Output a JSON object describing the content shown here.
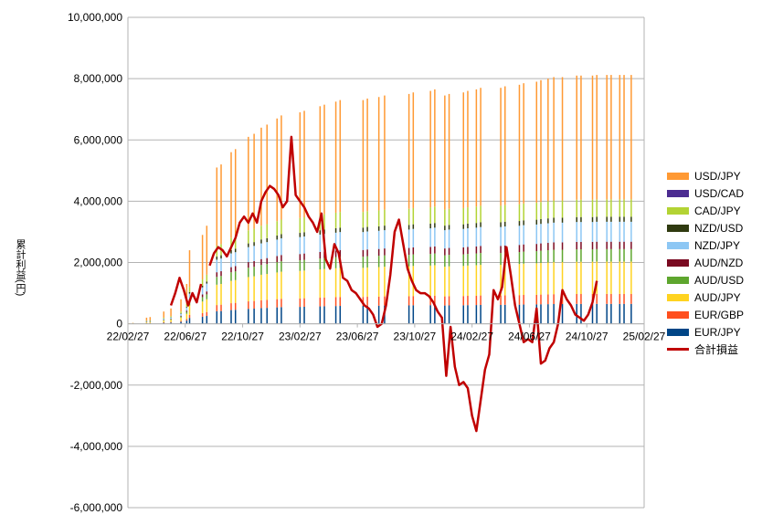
{
  "chart_data": {
    "type": "bar",
    "subtype": "stacked bar with line overlay",
    "title": "",
    "xlabel": "",
    "ylabel": "累計利益",
    "ylabel_unit": "(円)",
    "ylim": [
      -6000000,
      10000000
    ],
    "y_ticks": [
      "10,000,000",
      "8,000,000",
      "6,000,000",
      "4,000,000",
      "2,000,000",
      "0",
      "-2,000,000",
      "-4,000,000",
      "-6,000,000"
    ],
    "y_tick_values": [
      10000000,
      8000000,
      6000000,
      4000000,
      2000000,
      0,
      -2000000,
      -4000000,
      -6000000
    ],
    "x_ticks": [
      "22/02/27",
      "22/06/27",
      "22/10/27",
      "23/02/27",
      "23/06/27",
      "23/10/27",
      "24/02/27",
      "24/06/27",
      "24/10/27",
      "25/02/27"
    ],
    "grid": "horizontal",
    "legend_position": "right",
    "stack_series": [
      {
        "name": "USD/JPY",
        "color": "#FF9933"
      },
      {
        "name": "USD/CAD",
        "color": "#4C2C91"
      },
      {
        "name": "CAD/JPY",
        "color": "#B3D334"
      },
      {
        "name": "NZD/USD",
        "color": "#2F3A10"
      },
      {
        "name": "NZD/JPY",
        "color": "#8DC7F4"
      },
      {
        "name": "AUD/NZD",
        "color": "#7A0A21"
      },
      {
        "name": "AUD/USD",
        "color": "#5EA62E"
      },
      {
        "name": "AUD/JPY",
        "color": "#FFD320"
      },
      {
        "name": "EUR/GBP",
        "color": "#FF4F1E"
      },
      {
        "name": "EUR/JPY",
        "color": "#004586"
      }
    ],
    "bar_months": [
      0.1,
      0.35,
      1.3,
      1.55,
      2.5,
      3.0,
      3.7,
      4.1,
      4.3,
      5.2,
      5.5,
      6.2,
      6.5,
      7.2,
      7.5,
      8.4,
      8.8,
      9.3,
      9.7,
      10.4,
      10.7,
      12.0,
      12.3,
      13.4,
      13.7,
      14.5,
      14.8,
      16.4,
      16.7,
      17.5,
      17.9,
      19.6,
      19.9,
      21.1,
      21.4,
      22.1,
      22.4,
      23.4,
      23.7,
      24.3,
      24.6,
      26.0,
      26.3,
      27.3,
      27.6,
      28.5,
      28.8,
      29.3,
      29.7,
      30.3,
      31.3,
      31.6,
      32.4,
      32.7,
      33.4,
      33.7,
      34.3,
      34.6,
      35.1
    ],
    "bar_totals": [
      20000,
      30000,
      200000,
      220000,
      400000,
      500000,
      800000,
      1300000,
      2400000,
      2900000,
      3200000,
      5100000,
      5200000,
      5600000,
      5700000,
      6100000,
      6200000,
      6400000,
      6500000,
      6700000,
      6800000,
      6900000,
      6950000,
      7100000,
      7150000,
      7250000,
      7300000,
      7300000,
      7350000,
      7400000,
      7450000,
      7500000,
      7550000,
      7600000,
      7650000,
      7450000,
      7500000,
      7550000,
      7600000,
      7650000,
      7700000,
      7700000,
      7750000,
      7800000,
      7850000,
      7900000,
      7950000,
      8000000,
      8050000,
      8050000,
      8100000,
      8100000,
      8100000,
      8120000,
      8120000,
      8120000,
      8120000,
      8120000,
      8120000
    ],
    "stack_fractions": [
      0.5,
      0.0,
      0.07,
      0.02,
      0.08,
      0.03,
      0.05,
      0.13,
      0.04,
      0.08
    ],
    "line_series": {
      "name": "合計損益",
      "color": "#C00000",
      "x_months": [
        3.0,
        3.3,
        3.6,
        3.9,
        4.2,
        4.5,
        4.8,
        5.1,
        5.4,
        5.7,
        6.0,
        6.3,
        6.6,
        6.9,
        7.2,
        7.5,
        7.8,
        8.1,
        8.4,
        8.7,
        9.0,
        9.3,
        9.6,
        9.9,
        10.2,
        10.5,
        10.8,
        11.1,
        11.4,
        11.7,
        12.0,
        12.3,
        12.6,
        12.9,
        13.2,
        13.5,
        13.8,
        14.1,
        14.4,
        14.7,
        15.0,
        15.3,
        15.6,
        15.9,
        16.2,
        16.5,
        16.8,
        17.1,
        17.4,
        17.7,
        18.0,
        18.3,
        18.6,
        18.9,
        19.2,
        19.5,
        19.8,
        20.1,
        20.4,
        20.7,
        21.0,
        21.3,
        21.6,
        21.9,
        22.2,
        22.5,
        22.8,
        23.1,
        23.4,
        23.7,
        24.0,
        24.3,
        24.6,
        24.9,
        25.2,
        25.5,
        25.8,
        26.1,
        26.4,
        26.7,
        27.0,
        27.3,
        27.6,
        27.9,
        28.2,
        28.5,
        28.8,
        29.1,
        29.4,
        29.7,
        30.0,
        30.3,
        30.6,
        30.9,
        31.2,
        31.5,
        31.8,
        32.1,
        32.4,
        32.7,
        33.0,
        33.3,
        33.6,
        33.9,
        34.2,
        34.5,
        34.8,
        35.1,
        35.4,
        35.7
      ],
      "values": [
        600000,
        1000000,
        1500000,
        1100000,
        600000,
        1000000,
        700000,
        1300000,
        null,
        1900000,
        2300000,
        2500000,
        2400000,
        2200000,
        2500000,
        2800000,
        3300000,
        3500000,
        3300000,
        3600000,
        3300000,
        4000000,
        4300000,
        4500000,
        4400000,
        4200000,
        3800000,
        4000000,
        6100000,
        4200000,
        4000000,
        3800000,
        3500000,
        3300000,
        3000000,
        3600000,
        2100000,
        1800000,
        2600000,
        2300000,
        1500000,
        1400000,
        1100000,
        1000000,
        800000,
        600000,
        500000,
        300000,
        -100000,
        0,
        600000,
        1600000,
        3000000,
        3400000,
        2600000,
        1800000,
        1400000,
        1100000,
        1000000,
        1000000,
        900000,
        700000,
        400000,
        200000,
        -1700000,
        -100000,
        -1400000,
        -2000000,
        -1900000,
        -2100000,
        -3000000,
        -3500000,
        -2500000,
        -1500000,
        -1000000,
        1100000,
        800000,
        1200000,
        2500000,
        1600000,
        600000,
        0,
        -600000,
        -500000,
        -600000,
        500000,
        -1300000,
        -1200000,
        -800000,
        -600000,
        0,
        1100000,
        800000,
        600000,
        300000,
        200000,
        100000,
        300000,
        700000,
        1400000,
        null,
        null,
        null,
        null,
        null,
        null,
        null,
        null,
        null,
        null
      ]
    }
  }
}
